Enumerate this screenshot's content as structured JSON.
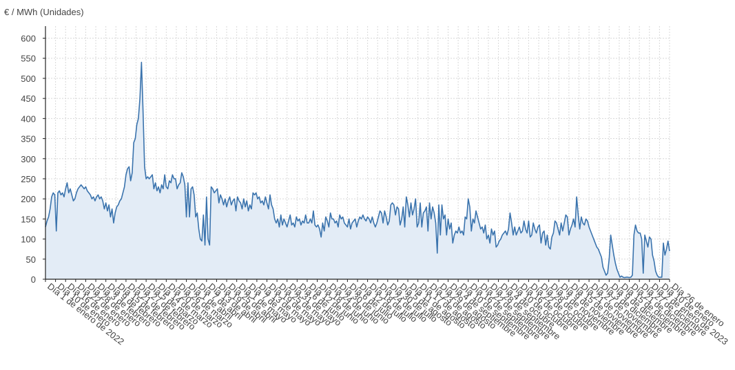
{
  "chart_data": {
    "type": "area",
    "ylabel": "€ / MWh (Unidades)",
    "ylim": [
      0,
      630
    ],
    "yticks": [
      0,
      50,
      100,
      150,
      200,
      250,
      300,
      350,
      400,
      450,
      500,
      550,
      600
    ],
    "grid": true,
    "colors": {
      "line": "#3a73ad",
      "fill": "#e3ecf6",
      "grid": "#d8d8d8",
      "axis": "#222222"
    },
    "x_tick_labels": [
      "Día 1 de enero de 2022",
      "Día 10 de enero",
      "Día 16 de enero",
      "Día 22 de enero",
      "Día 28 de enero",
      "Día 3 de febrero",
      "Día 9 de febrero",
      "Día 15 de febrero",
      "Día 21 de febrero",
      "Día 27 de febrero",
      "Día 5 de marzo",
      "Día 14 de marzo",
      "Día 20 de marzo",
      "Día 26 de marzo",
      "Día 1 de abril",
      "Día 7 de abril",
      "Día 13 de abril",
      "Día 19 de abril",
      "Día 25 de abril",
      "Día 1 de mayo",
      "Día 7 de mayo",
      "Día 13 de mayo",
      "Día 19 de mayo",
      "Día 25 de mayo",
      "Día 31 de mayo",
      "Día 6 de junio",
      "Día 12 de junio",
      "Día 18 de junio",
      "Día 24 de junio",
      "Día 30 de junio",
      "Día 6 de julio",
      "Día 12 de julio",
      "Día 18 de julio",
      "Día 24 de julio",
      "Día 30 de julio",
      "Día 5 de agosto",
      "Día 11 de agosto",
      "Día 17 de agosto",
      "Día 23 de agosto",
      "Día 29 de agosto",
      "Día 4 de septiembre",
      "Día 10 de septiembre",
      "Día 16 de septiembre",
      "Día 22 de septiembre",
      "Día 28 de septiembre",
      "Día 4 de octubre",
      "Día 10 de octubre",
      "Día 16 de octubre",
      "Día 22 de octubre",
      "Día 28 de octubre",
      "Día 3 de noviembre",
      "Día 9 de noviembre",
      "Día 15 de noviembre",
      "Día 21 de noviembre",
      "Día 27 de noviembre",
      "Día 3 de diciembre",
      "Día 9 de diciembre",
      "Día 15 de diciembre",
      "Día 21 de diciembre",
      "Día 27 de diciembre",
      "Día 2 de enero de 2023",
      "Día 10 de enero",
      "Día 26 de enero"
    ],
    "series": [
      {
        "values": [
          130,
          145,
          155,
          175,
          205,
          215,
          210,
          120,
          215,
          220,
          210,
          215,
          205,
          225,
          240,
          215,
          225,
          210,
          195,
          200,
          215,
          225,
          230,
          235,
          230,
          225,
          230,
          220,
          215,
          210,
          200,
          205,
          195,
          205,
          210,
          200,
          205,
          195,
          175,
          190,
          170,
          185,
          155,
          175,
          140,
          165,
          180,
          185,
          195,
          200,
          215,
          230,
          260,
          275,
          280,
          245,
          265,
          340,
          350,
          385,
          400,
          450,
          540,
          420,
          280,
          250,
          255,
          250,
          255,
          260,
          225,
          240,
          220,
          230,
          215,
          235,
          225,
          260,
          230,
          225,
          245,
          240,
          260,
          250,
          250,
          225,
          235,
          240,
          265,
          255,
          235,
          155,
          240,
          155,
          225,
          230,
          210,
          155,
          165,
          125,
          100,
          95,
          160,
          85,
          205,
          100,
          85,
          230,
          225,
          215,
          220,
          225,
          190,
          210,
          200,
          185,
          200,
          180,
          195,
          205,
          185,
          195,
          200,
          170,
          205,
          195,
          190,
          175,
          200,
          180,
          195,
          170,
          185,
          175,
          215,
          210,
          215,
          200,
          205,
          190,
          195,
          185,
          205,
          190,
          175,
          210,
          185,
          175,
          150,
          140,
          150,
          130,
          160,
          135,
          150,
          140,
          130,
          145,
          160,
          135,
          140,
          130,
          155,
          145,
          150,
          135,
          145,
          140,
          160,
          140,
          140,
          150,
          140,
          170,
          135,
          130,
          135,
          125,
          105,
          140,
          120,
          155,
          145,
          130,
          165,
          150,
          150,
          140,
          145,
          130,
          160,
          150,
          155,
          140,
          135,
          130,
          150,
          125,
          140,
          145,
          150,
          130,
          145,
          155,
          150,
          160,
          150,
          145,
          155,
          150,
          140,
          155,
          140,
          130,
          140,
          155,
          170,
          165,
          140,
          170,
          155,
          135,
          145,
          185,
          190,
          185,
          160,
          180,
          175,
          135,
          150,
          180,
          130,
          205,
          185,
          155,
          190,
          160,
          175,
          200,
          130,
          140,
          190,
          130,
          165,
          170,
          180,
          120,
          190,
          150,
          180,
          165,
          140,
          65,
          185,
          110,
          185,
          150,
          160,
          110,
          150,
          125,
          140,
          90,
          110,
          120,
          115,
          130,
          115,
          120,
          110,
          155,
          150,
          200,
          180,
          120,
          150,
          140,
          170,
          155,
          140,
          125,
          130,
          115,
          135,
          100,
          110,
          90,
          125,
          110,
          120,
          80,
          85,
          95,
          100,
          110,
          115,
          120,
          110,
          125,
          165,
          140,
          110,
          130,
          110,
          120,
          130,
          115,
          120,
          145,
          125,
          115,
          145,
          105,
          110,
          140,
          125,
          115,
          130,
          135,
          90,
          115,
          120,
          85,
          110,
          80,
          75,
          105,
          115,
          145,
          140,
          125,
          110,
          140,
          120,
          140,
          160,
          155,
          110,
          125,
          135,
          150,
          130,
          205,
          160,
          125,
          155,
          140,
          135,
          150,
          145,
          130,
          120,
          110,
          100,
          90,
          80,
          75,
          65,
          55,
          30,
          20,
          10,
          15,
          50,
          110,
          85,
          60,
          40,
          25,
          15,
          5,
          8,
          5,
          4,
          5,
          5,
          4,
          5,
          10,
          110,
          135,
          120,
          115,
          115,
          100,
          15,
          110,
          95,
          80,
          105,
          100,
          60,
          45,
          20,
          10,
          5,
          5,
          5,
          90,
          60,
          75,
          95,
          70
        ]
      }
    ]
  }
}
